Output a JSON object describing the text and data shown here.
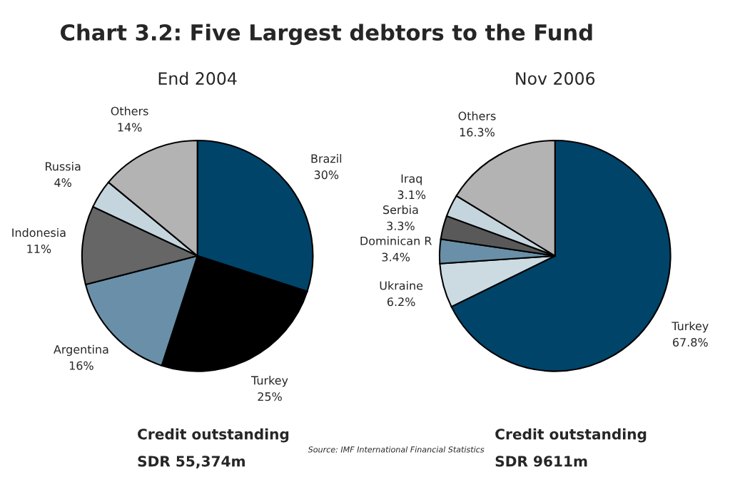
{
  "chart_data": [
    {
      "type": "pie",
      "title": "Chart 3.2: Five Largest debtors to the Fund",
      "subtitle": "End 2004",
      "categories": [
        "Brazil",
        "Turkey",
        "Argentina",
        "Indonesia",
        "Russia",
        "Others"
      ],
      "values": [
        30,
        25,
        16,
        11,
        4,
        14
      ],
      "colors": [
        "#00446a",
        "#000000",
        "#6990a8",
        "#666666",
        "#c5d5de",
        "#b3b3b3"
      ],
      "value_labels": [
        "30%",
        "25%",
        "16%",
        "11%",
        "4%",
        "14%"
      ],
      "annotations": [
        "Credit outstanding",
        "SDR 55,374m",
        "Source: IMF International Financial Statistics"
      ]
    },
    {
      "type": "pie",
      "subtitle": "Nov 2006",
      "categories": [
        "Turkey",
        "Ukraine",
        "Dominican R",
        "Serbia",
        "Iraq",
        "Others"
      ],
      "values": [
        67.8,
        6.2,
        3.4,
        3.3,
        3.1,
        16.3
      ],
      "colors": [
        "#00446a",
        "#ccdbe2",
        "#6990a8",
        "#595959",
        "#c5d5de",
        "#b3b3b3"
      ],
      "value_labels": [
        "67.8%",
        "6.2%",
        "3.4%",
        "3.3%",
        "3.1%",
        "16.3%"
      ],
      "annotations": [
        "Credit outstanding",
        "SDR 9611m"
      ]
    }
  ]
}
